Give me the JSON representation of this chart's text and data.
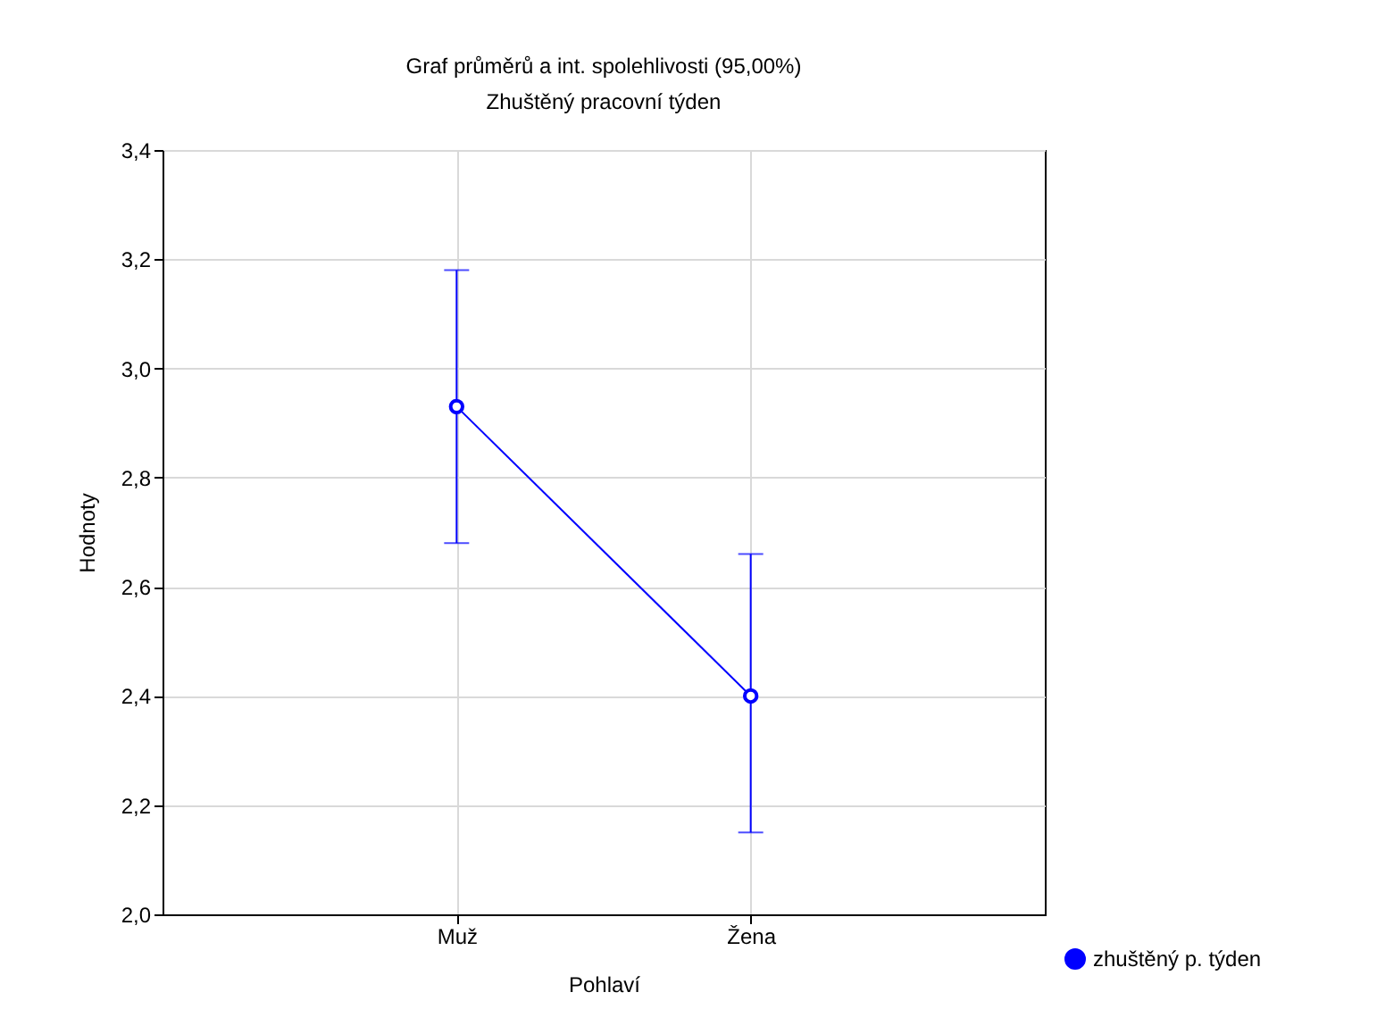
{
  "chart_data": {
    "type": "line",
    "title": "Graf průměrů a int. spolehlivosti (95,00%)",
    "subtitle": "Zhuštěný pracovní týden",
    "xlabel": "Pohlaví",
    "ylabel": "Hodnoty",
    "categories": [
      "Muž",
      "Žena"
    ],
    "series": [
      {
        "name": "zhuštěný p. týden",
        "color": "#0000ff",
        "values": [
          2.93,
          2.4
        ],
        "errors": [
          [
            2.68,
            3.18
          ],
          [
            2.15,
            2.66
          ]
        ]
      }
    ],
    "ylim": [
      2.0,
      3.4
    ],
    "yticks": [
      {
        "value": 2.0,
        "label": "2,0"
      },
      {
        "value": 2.2,
        "label": "2,2"
      },
      {
        "value": 2.4,
        "label": "2,4"
      },
      {
        "value": 2.6,
        "label": "2,6"
      },
      {
        "value": 2.8,
        "label": "2,8"
      },
      {
        "value": 3.0,
        "label": "3,0"
      },
      {
        "value": 3.2,
        "label": "3,2"
      },
      {
        "value": 3.4,
        "label": "3,4"
      }
    ],
    "grid": true,
    "legend": "bottom right",
    "marker": "circle",
    "line_style": "solid"
  }
}
